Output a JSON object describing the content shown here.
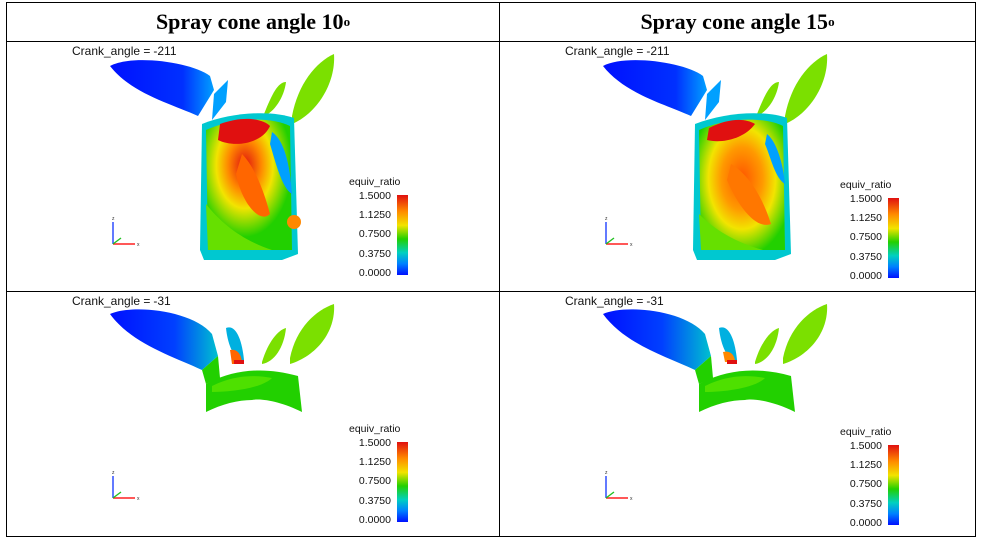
{
  "table": {
    "columns": [
      {
        "label": "Spray cone angle 10",
        "sup": "o"
      },
      {
        "label": "Spray cone angle 15",
        "sup": "o"
      }
    ]
  },
  "panels": [
    {
      "crank_label": "Crank_angle =",
      "crank_value": "-211",
      "legend_title": "equiv_ratio",
      "ticks": [
        "1.5000",
        "1.1250",
        "0.7500",
        "0.3750",
        "0.0000"
      ]
    },
    {
      "crank_label": "Crank_angle =",
      "crank_value": "-211",
      "legend_title": "equiv_ratio",
      "ticks": [
        "1.5000",
        "1.1250",
        "0.7500",
        "0.3750",
        "0.0000"
      ]
    },
    {
      "crank_label": "Crank_angle =",
      "crank_value": "-31",
      "legend_title": "equiv_ratio",
      "ticks": [
        "1.5000",
        "1.1250",
        "0.7500",
        "0.3750",
        "0.0000"
      ]
    },
    {
      "crank_label": "Crank_angle =",
      "crank_value": "-31",
      "legend_title": "equiv_ratio",
      "ticks": [
        "1.5000",
        "1.1250",
        "0.7500",
        "0.3750",
        "0.0000"
      ]
    }
  ],
  "colors": {
    "colormap": [
      "#0010ff",
      "#0080ff",
      "#00d0c0",
      "#22d000",
      "#f2e400",
      "#ff8800",
      "#e01010"
    ]
  }
}
